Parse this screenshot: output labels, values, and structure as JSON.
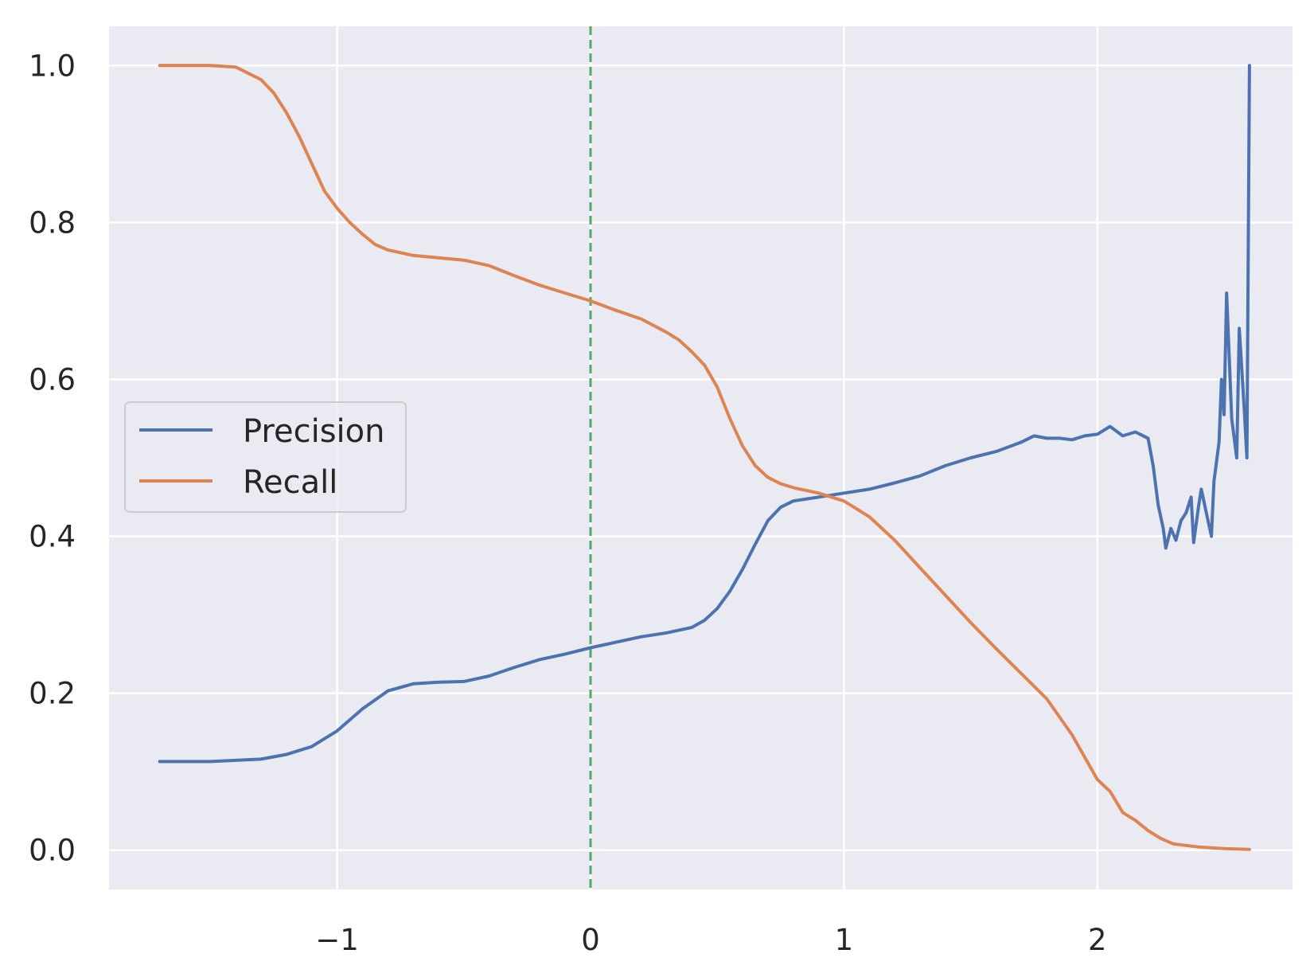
{
  "chart_data": {
    "type": "line",
    "title": "",
    "xlabel": "",
    "ylabel": "",
    "xlim": [
      -1.9,
      2.77
    ],
    "ylim": [
      -0.05,
      1.05
    ],
    "xticks": [
      -1,
      0,
      1,
      2
    ],
    "xtick_labels": [
      "−1",
      "0",
      "1",
      "2"
    ],
    "yticks": [
      0.0,
      0.2,
      0.4,
      0.6,
      0.8,
      1.0
    ],
    "ytick_labels": [
      "0.0",
      "0.2",
      "0.4",
      "0.6",
      "0.8",
      "1.0"
    ],
    "grid": true,
    "legend_position": "center-left",
    "background_color": "#eaeaf2",
    "vertical_line": {
      "x": 0.0,
      "style": "dashed",
      "color": "#55a868"
    },
    "series": [
      {
        "name": "Precision",
        "color": "#4c72b0",
        "points": [
          [
            -1.7,
            0.113
          ],
          [
            -1.5,
            0.113
          ],
          [
            -1.3,
            0.116
          ],
          [
            -1.2,
            0.122
          ],
          [
            -1.1,
            0.132
          ],
          [
            -1.0,
            0.152
          ],
          [
            -0.9,
            0.18
          ],
          [
            -0.8,
            0.203
          ],
          [
            -0.7,
            0.212
          ],
          [
            -0.6,
            0.214
          ],
          [
            -0.5,
            0.215
          ],
          [
            -0.4,
            0.222
          ],
          [
            -0.3,
            0.233
          ],
          [
            -0.2,
            0.243
          ],
          [
            -0.1,
            0.25
          ],
          [
            0.0,
            0.258
          ],
          [
            0.1,
            0.265
          ],
          [
            0.2,
            0.272
          ],
          [
            0.3,
            0.277
          ],
          [
            0.4,
            0.284
          ],
          [
            0.45,
            0.293
          ],
          [
            0.5,
            0.308
          ],
          [
            0.55,
            0.33
          ],
          [
            0.6,
            0.358
          ],
          [
            0.65,
            0.39
          ],
          [
            0.7,
            0.42
          ],
          [
            0.75,
            0.437
          ],
          [
            0.8,
            0.445
          ],
          [
            0.9,
            0.45
          ],
          [
            1.0,
            0.455
          ],
          [
            1.1,
            0.46
          ],
          [
            1.2,
            0.468
          ],
          [
            1.3,
            0.477
          ],
          [
            1.4,
            0.49
          ],
          [
            1.5,
            0.5
          ],
          [
            1.6,
            0.508
          ],
          [
            1.7,
            0.52
          ],
          [
            1.75,
            0.528
          ],
          [
            1.8,
            0.525
          ],
          [
            1.85,
            0.525
          ],
          [
            1.9,
            0.523
          ],
          [
            1.95,
            0.528
          ],
          [
            2.0,
            0.53
          ],
          [
            2.05,
            0.54
          ],
          [
            2.1,
            0.528
          ],
          [
            2.15,
            0.533
          ],
          [
            2.2,
            0.525
          ],
          [
            2.22,
            0.49
          ],
          [
            2.24,
            0.44
          ],
          [
            2.26,
            0.41
          ],
          [
            2.27,
            0.385
          ],
          [
            2.29,
            0.41
          ],
          [
            2.31,
            0.395
          ],
          [
            2.33,
            0.42
          ],
          [
            2.35,
            0.43
          ],
          [
            2.37,
            0.45
          ],
          [
            2.38,
            0.392
          ],
          [
            2.4,
            0.44
          ],
          [
            2.41,
            0.46
          ],
          [
            2.43,
            0.43
          ],
          [
            2.45,
            0.4
          ],
          [
            2.46,
            0.47
          ],
          [
            2.48,
            0.52
          ],
          [
            2.49,
            0.6
          ],
          [
            2.5,
            0.555
          ],
          [
            2.51,
            0.71
          ],
          [
            2.53,
            0.55
          ],
          [
            2.55,
            0.5
          ],
          [
            2.56,
            0.665
          ],
          [
            2.58,
            0.56
          ],
          [
            2.59,
            0.5
          ],
          [
            2.6,
            1.0
          ]
        ]
      },
      {
        "name": "Recall",
        "color": "#dd8452",
        "points": [
          [
            -1.7,
            1.0
          ],
          [
            -1.5,
            1.0
          ],
          [
            -1.4,
            0.998
          ],
          [
            -1.35,
            0.99
          ],
          [
            -1.3,
            0.982
          ],
          [
            -1.25,
            0.965
          ],
          [
            -1.2,
            0.94
          ],
          [
            -1.15,
            0.91
          ],
          [
            -1.1,
            0.875
          ],
          [
            -1.05,
            0.84
          ],
          [
            -1.0,
            0.818
          ],
          [
            -0.95,
            0.8
          ],
          [
            -0.9,
            0.785
          ],
          [
            -0.85,
            0.772
          ],
          [
            -0.8,
            0.765
          ],
          [
            -0.7,
            0.758
          ],
          [
            -0.6,
            0.755
          ],
          [
            -0.5,
            0.752
          ],
          [
            -0.4,
            0.745
          ],
          [
            -0.3,
            0.732
          ],
          [
            -0.2,
            0.72
          ],
          [
            -0.1,
            0.71
          ],
          [
            0.0,
            0.7
          ],
          [
            0.1,
            0.688
          ],
          [
            0.2,
            0.677
          ],
          [
            0.3,
            0.66
          ],
          [
            0.35,
            0.65
          ],
          [
            0.4,
            0.635
          ],
          [
            0.45,
            0.618
          ],
          [
            0.5,
            0.59
          ],
          [
            0.55,
            0.55
          ],
          [
            0.6,
            0.515
          ],
          [
            0.65,
            0.49
          ],
          [
            0.7,
            0.475
          ],
          [
            0.75,
            0.467
          ],
          [
            0.8,
            0.462
          ],
          [
            0.9,
            0.455
          ],
          [
            1.0,
            0.445
          ],
          [
            1.1,
            0.425
          ],
          [
            1.2,
            0.395
          ],
          [
            1.3,
            0.36
          ],
          [
            1.4,
            0.325
          ],
          [
            1.5,
            0.29
          ],
          [
            1.6,
            0.257
          ],
          [
            1.7,
            0.225
          ],
          [
            1.8,
            0.193
          ],
          [
            1.9,
            0.147
          ],
          [
            2.0,
            0.09
          ],
          [
            2.05,
            0.075
          ],
          [
            2.1,
            0.048
          ],
          [
            2.15,
            0.038
          ],
          [
            2.2,
            0.025
          ],
          [
            2.25,
            0.015
          ],
          [
            2.3,
            0.008
          ],
          [
            2.4,
            0.004
          ],
          [
            2.5,
            0.002
          ],
          [
            2.6,
            0.001
          ]
        ]
      }
    ]
  }
}
